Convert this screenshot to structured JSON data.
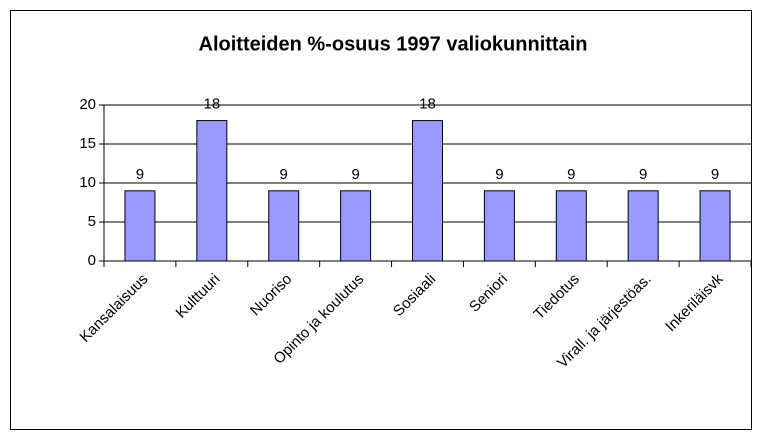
{
  "chart_data": {
    "type": "bar",
    "title": "Aloitteiden %-osuus 1997 valiokunnittain",
    "categories": [
      "Kansalaisuus",
      "Kulttuuri",
      "Nuoriso",
      "Opinto ja koulutus",
      "Sosiaali",
      "Seniori",
      "Tiedotus",
      "Virall. ja järjestöas.",
      "Inkeriläisvk"
    ],
    "values": [
      9,
      18,
      9,
      9,
      18,
      9,
      9,
      9,
      9
    ],
    "color": "#9999ff",
    "ylim": [
      0,
      20
    ],
    "yticks": [
      0,
      5,
      10,
      15,
      20
    ],
    "grid": true
  }
}
